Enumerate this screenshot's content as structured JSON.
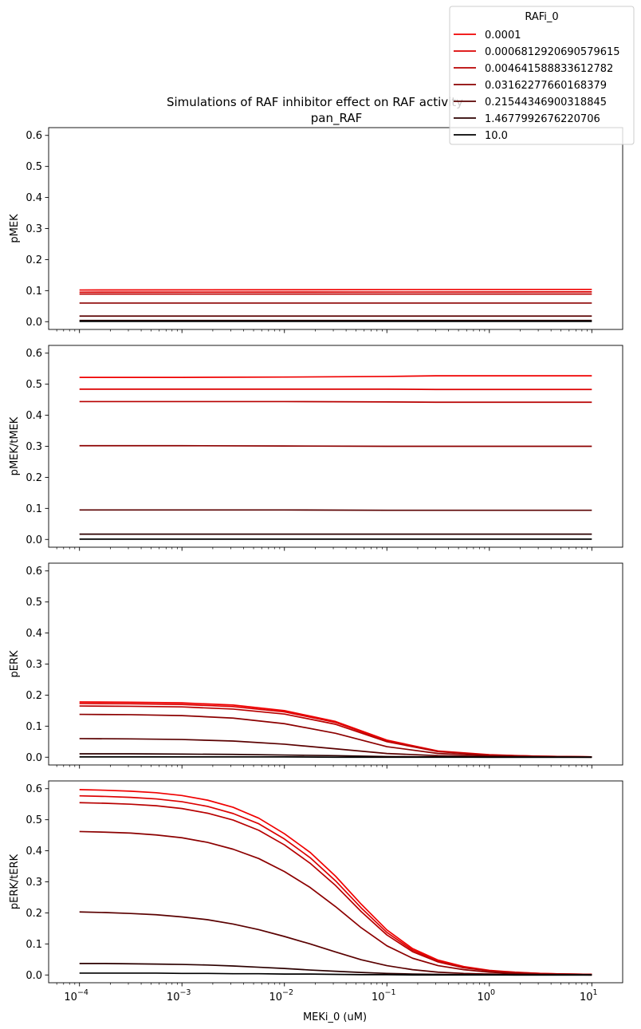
{
  "figure": {
    "title_line1": "Simulations of RAF inhibitor effect on RAF activity",
    "title_line2": "pan_RAF",
    "xlabel": "MEKi_0 (uM)"
  },
  "legend": {
    "title": "RAFi_0",
    "placement": "top-right",
    "entries": [
      {
        "label": "0.0001",
        "color": "#f00000"
      },
      {
        "label": "0.0006812920690579615",
        "color": "#dc0000"
      },
      {
        "label": "0.004641588833612782",
        "color": "#b80000"
      },
      {
        "label": "0.03162277660168379",
        "color": "#8c0000"
      },
      {
        "label": "0.21544346900318845",
        "color": "#5a0000"
      },
      {
        "label": "1.4677992676220706",
        "color": "#2c0000"
      },
      {
        "label": "10.0",
        "color": "#000000"
      }
    ]
  },
  "chart_data": [
    {
      "type": "line",
      "ylabel": "pMEK",
      "xscale": "log",
      "xlim": [
        5e-05,
        20
      ],
      "ylim": [
        -0.025,
        0.625
      ],
      "yticks": [
        "0.0",
        "0.1",
        "0.2",
        "0.3",
        "0.4",
        "0.5",
        "0.6"
      ],
      "xticks_visible": false,
      "x": [
        0.0001,
        10
      ],
      "series": [
        {
          "name": "0.0001",
          "values": [
            0.102,
            0.104
          ]
        },
        {
          "name": "0.0006812920690579615",
          "values": [
            0.095,
            0.096
          ]
        },
        {
          "name": "0.004641588833612782",
          "values": [
            0.089,
            0.089
          ]
        },
        {
          "name": "0.03162277660168379",
          "values": [
            0.06,
            0.06
          ]
        },
        {
          "name": "0.21544346900318845",
          "values": [
            0.018,
            0.018
          ]
        },
        {
          "name": "1.4677992676220706",
          "values": [
            0.004,
            0.004
          ]
        },
        {
          "name": "10.0",
          "values": [
            0.001,
            0.001
          ]
        }
      ]
    },
    {
      "type": "line",
      "ylabel": "pMEK/tMEK",
      "xscale": "log",
      "xlim": [
        5e-05,
        20
      ],
      "ylim": [
        -0.025,
        0.625
      ],
      "yticks": [
        "0.0",
        "0.1",
        "0.2",
        "0.3",
        "0.4",
        "0.5",
        "0.6"
      ],
      "xticks_visible": false,
      "x": [
        0.0001,
        0.001,
        0.01,
        0.1,
        0.3,
        1,
        10
      ],
      "series": [
        {
          "name": "0.0001",
          "values": [
            0.522,
            0.522,
            0.523,
            0.525,
            0.527,
            0.527,
            0.527
          ]
        },
        {
          "name": "0.0006812920690579615",
          "values": [
            0.484,
            0.484,
            0.484,
            0.484,
            0.483,
            0.483,
            0.483
          ]
        },
        {
          "name": "0.004641588833612782",
          "values": [
            0.444,
            0.444,
            0.444,
            0.443,
            0.442,
            0.442,
            0.442
          ]
        },
        {
          "name": "0.03162277660168379",
          "values": [
            0.302,
            0.302,
            0.301,
            0.3,
            0.3,
            0.3,
            0.3
          ]
        },
        {
          "name": "0.21544346900318845",
          "values": [
            0.095,
            0.095,
            0.095,
            0.094,
            0.094,
            0.094,
            0.094
          ]
        },
        {
          "name": "1.4677992676220706",
          "values": [
            0.017,
            0.017,
            0.017,
            0.017,
            0.017,
            0.017,
            0.017
          ]
        },
        {
          "name": "10.0",
          "values": [
            0.001,
            0.001,
            0.001,
            0.001,
            0.001,
            0.001,
            0.001
          ]
        }
      ]
    },
    {
      "type": "line",
      "ylabel": "pERK",
      "xscale": "log",
      "xlim": [
        5e-05,
        20
      ],
      "ylim": [
        -0.025,
        0.625
      ],
      "yticks": [
        "0.0",
        "0.1",
        "0.2",
        "0.3",
        "0.4",
        "0.5",
        "0.6"
      ],
      "xticks_visible": false,
      "x": [
        0.0001,
        0.000316,
        0.001,
        0.00316,
        0.01,
        0.0316,
        0.1,
        0.316,
        1,
        3.16,
        10
      ],
      "series": [
        {
          "name": "0.0001",
          "values": [
            0.178,
            0.177,
            0.175,
            0.168,
            0.15,
            0.115,
            0.055,
            0.02,
            0.008,
            0.003,
            0.001
          ]
        },
        {
          "name": "0.0006812920690579615",
          "values": [
            0.173,
            0.172,
            0.17,
            0.163,
            0.146,
            0.112,
            0.053,
            0.019,
            0.007,
            0.003,
            0.001
          ]
        },
        {
          "name": "0.004641588833612782",
          "values": [
            0.165,
            0.164,
            0.162,
            0.155,
            0.139,
            0.106,
            0.05,
            0.018,
            0.007,
            0.003,
            0.001
          ]
        },
        {
          "name": "0.03162277660168379",
          "values": [
            0.138,
            0.137,
            0.134,
            0.126,
            0.108,
            0.077,
            0.034,
            0.012,
            0.005,
            0.002,
            0.001
          ]
        },
        {
          "name": "0.21544346900318845",
          "values": [
            0.06,
            0.059,
            0.057,
            0.052,
            0.042,
            0.027,
            0.012,
            0.005,
            0.002,
            0.001,
            0.0
          ]
        },
        {
          "name": "1.4677992676220706",
          "values": [
            0.011,
            0.011,
            0.01,
            0.009,
            0.007,
            0.005,
            0.002,
            0.001,
            0.0,
            0.0,
            0.0
          ]
        },
        {
          "name": "10.0",
          "values": [
            0.001,
            0.001,
            0.001,
            0.001,
            0.001,
            0.0,
            0.0,
            0.0,
            0.0,
            0.0,
            0.0
          ]
        }
      ]
    },
    {
      "type": "line",
      "ylabel": "pERK/tERK",
      "xscale": "log",
      "xlim": [
        5e-05,
        20
      ],
      "ylim": [
        -0.025,
        0.625
      ],
      "yticks": [
        "0.0",
        "0.1",
        "0.2",
        "0.3",
        "0.4",
        "0.5",
        "0.6"
      ],
      "xticks_visible": true,
      "xticks": [
        {
          "value": 0.0001,
          "base": "10",
          "exp": "−4"
        },
        {
          "value": 0.001,
          "base": "10",
          "exp": "−3"
        },
        {
          "value": 0.01,
          "base": "10",
          "exp": "−2"
        },
        {
          "value": 0.1,
          "base": "10",
          "exp": "−1"
        },
        {
          "value": 1,
          "base": "10",
          "exp": "0"
        },
        {
          "value": 10,
          "base": "10",
          "exp": "1"
        }
      ],
      "x": [
        0.0001,
        0.000178,
        0.000316,
        0.000562,
        0.001,
        0.00178,
        0.00316,
        0.00562,
        0.01,
        0.0178,
        0.0316,
        0.0562,
        0.1,
        0.178,
        0.316,
        0.562,
        1,
        1.78,
        3.16,
        5.62,
        10
      ],
      "series": [
        {
          "name": "0.0001",
          "values": [
            0.597,
            0.595,
            0.592,
            0.587,
            0.578,
            0.563,
            0.54,
            0.505,
            0.455,
            0.395,
            0.318,
            0.228,
            0.145,
            0.085,
            0.048,
            0.027,
            0.015,
            0.009,
            0.005,
            0.003,
            0.002
          ]
        },
        {
          "name": "0.0006812920690579615",
          "values": [
            0.577,
            0.575,
            0.572,
            0.567,
            0.558,
            0.543,
            0.52,
            0.487,
            0.438,
            0.378,
            0.303,
            0.216,
            0.137,
            0.08,
            0.045,
            0.025,
            0.014,
            0.008,
            0.005,
            0.003,
            0.002
          ]
        },
        {
          "name": "0.004641588833612782",
          "values": [
            0.555,
            0.553,
            0.55,
            0.545,
            0.536,
            0.521,
            0.499,
            0.466,
            0.419,
            0.36,
            0.288,
            0.204,
            0.129,
            0.075,
            0.042,
            0.023,
            0.013,
            0.008,
            0.004,
            0.003,
            0.002
          ]
        },
        {
          "name": "0.03162277660168379",
          "values": [
            0.462,
            0.46,
            0.457,
            0.451,
            0.442,
            0.427,
            0.405,
            0.375,
            0.333,
            0.282,
            0.22,
            0.152,
            0.094,
            0.054,
            0.03,
            0.017,
            0.009,
            0.005,
            0.003,
            0.002,
            0.001
          ]
        },
        {
          "name": "0.21544346900318845",
          "values": [
            0.203,
            0.201,
            0.198,
            0.194,
            0.187,
            0.178,
            0.164,
            0.146,
            0.124,
            0.1,
            0.074,
            0.049,
            0.03,
            0.017,
            0.009,
            0.005,
            0.003,
            0.002,
            0.001,
            0.001,
            0.0
          ]
        },
        {
          "name": "1.4677992676220706",
          "values": [
            0.037,
            0.037,
            0.036,
            0.035,
            0.034,
            0.032,
            0.029,
            0.025,
            0.021,
            0.016,
            0.012,
            0.008,
            0.005,
            0.003,
            0.002,
            0.001,
            0.001,
            0.0,
            0.0,
            0.0,
            0.0
          ]
        },
        {
          "name": "10.0",
          "values": [
            0.006,
            0.006,
            0.006,
            0.006,
            0.005,
            0.005,
            0.004,
            0.004,
            0.003,
            0.003,
            0.002,
            0.001,
            0.001,
            0.0,
            0.0,
            0.0,
            0.0,
            0.0,
            0.0,
            0.0,
            0.0
          ]
        }
      ]
    }
  ]
}
